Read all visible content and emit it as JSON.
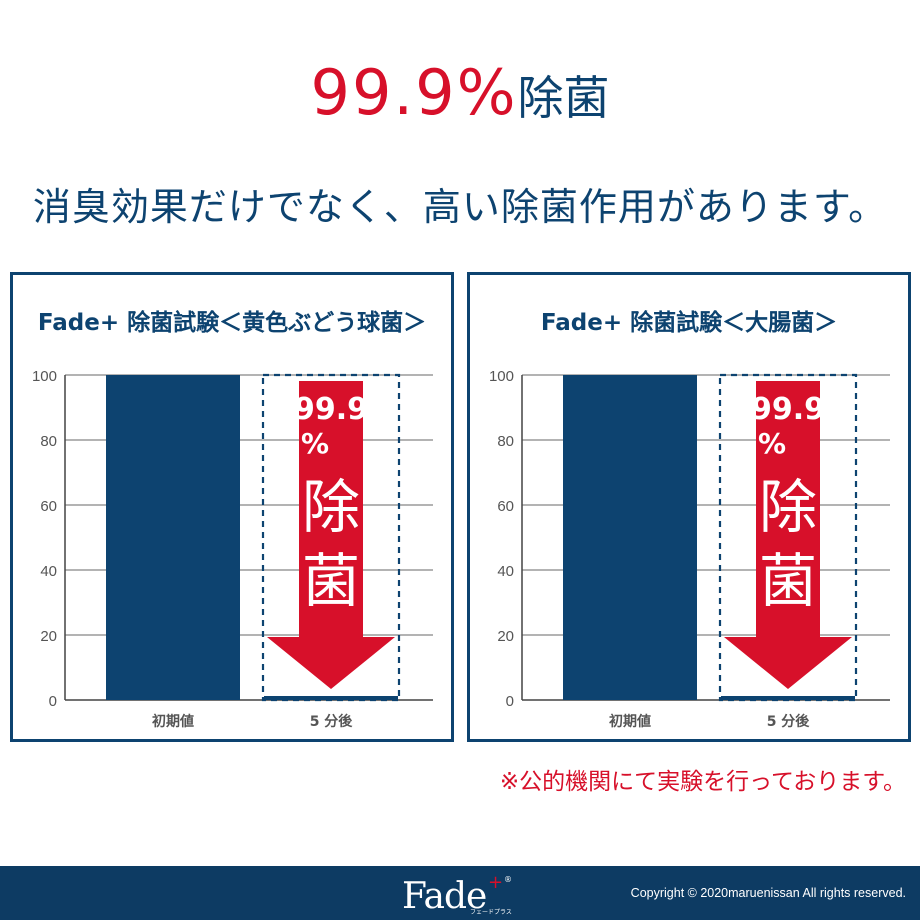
{
  "headline": {
    "number": "99.9%",
    "word": "除菌"
  },
  "subheadline": "消臭効果だけでなく、高い除菌作用があります。",
  "chart_data": [
    {
      "type": "bar",
      "title": "Fade+ 除菌試験＜黄色ぶどう球菌＞",
      "categories": [
        "初期値",
        "5 分後"
      ],
      "values": [
        100,
        0.1
      ],
      "ylim": [
        0,
        100
      ],
      "yticks": [
        0,
        20,
        40,
        60,
        80,
        100
      ],
      "grid": true,
      "annotation": {
        "percent": "99.9",
        "percent_sign": "%",
        "line1": "除",
        "line2": "菌"
      }
    },
    {
      "type": "bar",
      "title": "Fade+ 除菌試験＜大腸菌＞",
      "categories": [
        "初期値",
        "5 分後"
      ],
      "values": [
        100,
        0.1
      ],
      "ylim": [
        0,
        100
      ],
      "yticks": [
        0,
        20,
        40,
        60,
        80,
        100
      ],
      "grid": true,
      "annotation": {
        "percent": "99.9",
        "percent_sign": "%",
        "line1": "除",
        "line2": "菌"
      }
    }
  ],
  "footnote": "※公的機関にて実験を行っております。",
  "footer": {
    "logo_text": "Fade",
    "logo_plus": "+",
    "logo_registered": "®",
    "logo_sub": "フェードプラス",
    "copyright": "Copyright © 2020maruenissan All rights reserved."
  },
  "colors": {
    "navy": "#0d4370",
    "red": "#d7102a",
    "grid": "#9a9a9a",
    "footer": "#0d3b63"
  }
}
